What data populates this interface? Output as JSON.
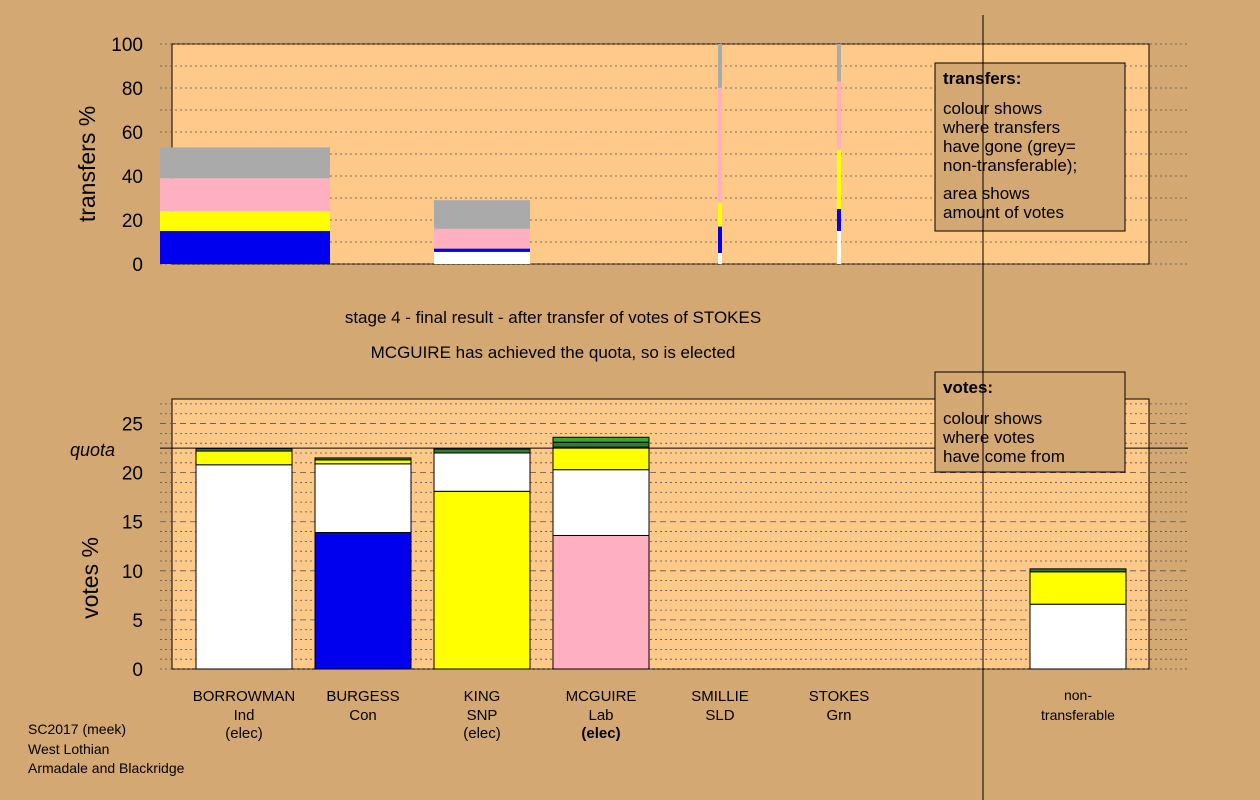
{
  "colors": {
    "background": "#d4a873",
    "plot_bg": "#ffc989",
    "white": "#ffffff",
    "blue": "#0000ee",
    "yellow": "#ffff00",
    "pink": "#ffb0c0",
    "grey": "#aaaaaa",
    "green": "#33aa33",
    "darkgreen": "#2e7d32"
  },
  "stage_title": "stage 4 - final result - after transfer of votes of STOKES",
  "stage_subtitle": "MCGUIRE has achieved the quota, so is elected",
  "footer": [
    "SC2017 (meek)",
    "West Lothian",
    "Armadale and Blackridge"
  ],
  "transfers_legend": {
    "title": "transfers:",
    "lines": [
      "colour shows",
      "where transfers",
      "have gone (grey=",
      "non-transferable);"
    ],
    "lines2": [
      "area shows",
      "amount of votes"
    ]
  },
  "votes_legend": {
    "title": "votes:",
    "lines": [
      "colour shows",
      "where votes",
      "have come from"
    ]
  },
  "candidates": [
    {
      "name": "BORROWMAN",
      "party": "Ind",
      "status": "(elec)",
      "status_bold": false
    },
    {
      "name": "BURGESS",
      "party": "Con",
      "status": "",
      "status_bold": false
    },
    {
      "name": "KING",
      "party": "SNP",
      "status": "(elec)",
      "status_bold": false
    },
    {
      "name": "MCGUIRE",
      "party": "Lab",
      "status": "(elec)",
      "status_bold": true
    },
    {
      "name": "SMILLIE",
      "party": "SLD",
      "status": "",
      "status_bold": false
    },
    {
      "name": "STOKES",
      "party": "Grn",
      "status": "",
      "status_bold": false
    }
  ],
  "nontransferable_label": [
    "non-",
    "transferable"
  ],
  "chart_data": [
    {
      "type": "bar",
      "ylabel": "transfers %",
      "ylim": [
        0,
        100
      ],
      "yticks": [
        0,
        20,
        40,
        60,
        80,
        100
      ],
      "bars": [
        {
          "candidate": "BORROWMAN",
          "width": "wide",
          "segments": [
            {
              "color": "blue",
              "from": 0,
              "to": 15
            },
            {
              "color": "yellow",
              "from": 15,
              "to": 24
            },
            {
              "color": "pink",
              "from": 24,
              "to": 39
            },
            {
              "color": "grey",
              "from": 39,
              "to": 53
            }
          ]
        },
        {
          "candidate": "KING",
          "width": "wide",
          "segments": [
            {
              "color": "white",
              "from": 0,
              "to": 5.5
            },
            {
              "color": "blue",
              "from": 5.5,
              "to": 7
            },
            {
              "color": "pink",
              "from": 7,
              "to": 16
            },
            {
              "color": "grey",
              "from": 16,
              "to": 29
            }
          ]
        },
        {
          "candidate": "SMILLIE",
          "width": "thin",
          "segments": [
            {
              "color": "white",
              "from": 0,
              "to": 5
            },
            {
              "color": "blue",
              "from": 5,
              "to": 17
            },
            {
              "color": "yellow",
              "from": 17,
              "to": 28
            },
            {
              "color": "pink",
              "from": 28,
              "to": 80
            },
            {
              "color": "grey",
              "from": 80,
              "to": 100
            }
          ]
        },
        {
          "candidate": "STOKES",
          "width": "thin",
          "segments": [
            {
              "color": "white",
              "from": 0,
              "to": 15
            },
            {
              "color": "blue",
              "from": 15,
              "to": 25
            },
            {
              "color": "yellow",
              "from": 25,
              "to": 52
            },
            {
              "color": "pink",
              "from": 52,
              "to": 83
            },
            {
              "color": "grey",
              "from": 83,
              "to": 100
            }
          ]
        }
      ]
    },
    {
      "type": "bar",
      "ylabel": "votes %",
      "ylim": [
        0,
        27.5
      ],
      "yticks": [
        0,
        5,
        10,
        15,
        20,
        25
      ],
      "quota": 22.5,
      "quota_label": "quota",
      "bars": [
        {
          "candidate": "BORROWMAN",
          "segments": [
            {
              "color": "white",
              "from": 0,
              "to": 20.8
            },
            {
              "color": "yellow",
              "from": 20.8,
              "to": 22.2
            },
            {
              "color": "darkgreen",
              "from": 22.2,
              "to": 22.45
            }
          ]
        },
        {
          "candidate": "BURGESS",
          "segments": [
            {
              "color": "blue",
              "from": 0,
              "to": 13.9
            },
            {
              "color": "white",
              "from": 13.9,
              "to": 20.9
            },
            {
              "color": "yellow",
              "from": 20.9,
              "to": 21.3
            },
            {
              "color": "darkgreen",
              "from": 21.3,
              "to": 21.5
            }
          ]
        },
        {
          "candidate": "KING",
          "segments": [
            {
              "color": "yellow",
              "from": 0,
              "to": 18.1
            },
            {
              "color": "white",
              "from": 18.1,
              "to": 22.0
            },
            {
              "color": "darkgreen",
              "from": 22.0,
              "to": 22.4
            }
          ]
        },
        {
          "candidate": "MCGUIRE",
          "segments": [
            {
              "color": "pink",
              "from": 0,
              "to": 13.6
            },
            {
              "color": "white",
              "from": 13.6,
              "to": 20.3
            },
            {
              "color": "yellow",
              "from": 20.3,
              "to": 22.6
            },
            {
              "color": "darkgreen",
              "from": 22.6,
              "to": 23.1
            },
            {
              "color": "green",
              "from": 23.1,
              "to": 23.6
            }
          ]
        },
        {
          "candidate": "non-transferable",
          "segments": [
            {
              "color": "white",
              "from": 0,
              "to": 6.6
            },
            {
              "color": "yellow",
              "from": 6.6,
              "to": 9.9
            },
            {
              "color": "darkgreen",
              "from": 9.9,
              "to": 10.2
            }
          ]
        }
      ]
    }
  ]
}
